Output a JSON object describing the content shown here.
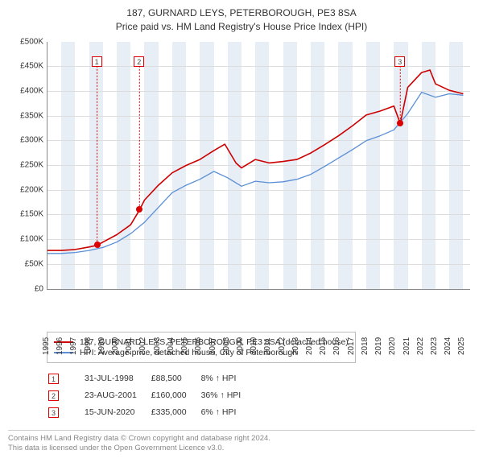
{
  "title": {
    "line1": "187, GURNARD LEYS, PETERBOROUGH, PE3 8SA",
    "line2": "Price paid vs. HM Land Registry's House Price Index (HPI)"
  },
  "chart": {
    "type": "line",
    "xlim": [
      1995,
      2025.5
    ],
    "ylim": [
      0,
      500000
    ],
    "ytick_step": 50000,
    "yticks": [
      "£0",
      "£50K",
      "£100K",
      "£150K",
      "£200K",
      "£250K",
      "£300K",
      "£350K",
      "£400K",
      "£450K",
      "£500K"
    ],
    "xticks": [
      1995,
      1996,
      1997,
      1998,
      1999,
      2000,
      2001,
      2002,
      2003,
      2004,
      2005,
      2006,
      2007,
      2008,
      2009,
      2010,
      2011,
      2012,
      2013,
      2014,
      2015,
      2016,
      2017,
      2018,
      2019,
      2020,
      2021,
      2022,
      2023,
      2024,
      2025
    ],
    "band_color": "#e8eef6",
    "grid_color": "#dddddd",
    "series": [
      {
        "name": "187, GURNARD LEYS, PETERBOROUGH, PE3 8SA (detached house)",
        "color": "#cc0000",
        "width": 1.6,
        "points": [
          [
            1995,
            78000
          ],
          [
            1996,
            78000
          ],
          [
            1997,
            80000
          ],
          [
            1998,
            85000
          ],
          [
            1998.58,
            88500
          ],
          [
            1999,
            95000
          ],
          [
            2000,
            110000
          ],
          [
            2001,
            130000
          ],
          [
            2001.64,
            160000
          ],
          [
            2002,
            180000
          ],
          [
            2003,
            210000
          ],
          [
            2004,
            235000
          ],
          [
            2005,
            250000
          ],
          [
            2006,
            262000
          ],
          [
            2007,
            280000
          ],
          [
            2007.8,
            293000
          ],
          [
            2008.6,
            255000
          ],
          [
            2009,
            245000
          ],
          [
            2010,
            262000
          ],
          [
            2011,
            255000
          ],
          [
            2012,
            258000
          ],
          [
            2013,
            262000
          ],
          [
            2014,
            275000
          ],
          [
            2015,
            292000
          ],
          [
            2016,
            310000
          ],
          [
            2017,
            330000
          ],
          [
            2018,
            352000
          ],
          [
            2019,
            360000
          ],
          [
            2020,
            370000
          ],
          [
            2020.46,
            335000
          ],
          [
            2021,
            408000
          ],
          [
            2022,
            438000
          ],
          [
            2022.6,
            443000
          ],
          [
            2023,
            415000
          ],
          [
            2024,
            402000
          ],
          [
            2025,
            395000
          ]
        ]
      },
      {
        "name": "HPI: Average price, detached house, City of Peterborough",
        "color": "#5a8fd6",
        "width": 1.3,
        "points": [
          [
            1995,
            72000
          ],
          [
            1996,
            72000
          ],
          [
            1997,
            74000
          ],
          [
            1998,
            78000
          ],
          [
            1999,
            84000
          ],
          [
            2000,
            95000
          ],
          [
            2001,
            112000
          ],
          [
            2002,
            135000
          ],
          [
            2003,
            165000
          ],
          [
            2004,
            195000
          ],
          [
            2005,
            210000
          ],
          [
            2006,
            222000
          ],
          [
            2007,
            238000
          ],
          [
            2008,
            225000
          ],
          [
            2009,
            208000
          ],
          [
            2010,
            218000
          ],
          [
            2011,
            215000
          ],
          [
            2012,
            217000
          ],
          [
            2013,
            222000
          ],
          [
            2014,
            232000
          ],
          [
            2015,
            248000
          ],
          [
            2016,
            265000
          ],
          [
            2017,
            282000
          ],
          [
            2018,
            300000
          ],
          [
            2019,
            310000
          ],
          [
            2020,
            322000
          ],
          [
            2021,
            355000
          ],
          [
            2022,
            398000
          ],
          [
            2023,
            388000
          ],
          [
            2024,
            395000
          ],
          [
            2025,
            392000
          ]
        ]
      }
    ],
    "sale_markers": [
      {
        "n": "1",
        "x": 1998.58,
        "y": 88500,
        "box_y": 458000
      },
      {
        "n": "2",
        "x": 2001.64,
        "y": 160000,
        "box_y": 458000
      },
      {
        "n": "3",
        "x": 2020.46,
        "y": 335000,
        "box_y": 458000
      }
    ]
  },
  "legend": {
    "items": [
      {
        "color": "#cc0000",
        "label": "187, GURNARD LEYS, PETERBOROUGH, PE3 8SA (detached house)"
      },
      {
        "color": "#5a8fd6",
        "label": "HPI: Average price, detached house, City of Peterborough"
      }
    ]
  },
  "sales": [
    {
      "n": "1",
      "date": "31-JUL-1998",
      "price": "£88,500",
      "delta": "8% ↑ HPI"
    },
    {
      "n": "2",
      "date": "23-AUG-2001",
      "price": "£160,000",
      "delta": "36% ↑ HPI"
    },
    {
      "n": "3",
      "date": "15-JUN-2020",
      "price": "£335,000",
      "delta": "6% ↑ HPI"
    }
  ],
  "footer": {
    "line1": "Contains HM Land Registry data © Crown copyright and database right 2024.",
    "line2": "This data is licensed under the Open Government Licence v3.0."
  }
}
